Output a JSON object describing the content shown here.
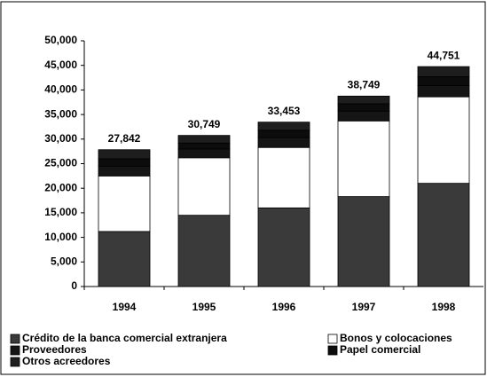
{
  "chart_data": {
    "type": "stacked_bar",
    "categories": [
      "1994",
      "1995",
      "1996",
      "1997",
      "1998"
    ],
    "series": [
      {
        "name": "Crédito de la banca comercial extranjera",
        "color": "#3a3a3a",
        "values": [
          11200,
          14500,
          16000,
          18300,
          21000
        ]
      },
      {
        "name": "Bonos y colocaciones",
        "color": "#ffffff",
        "values": [
          11300,
          11700,
          12300,
          15400,
          17600
        ]
      },
      {
        "name": "Proveedores",
        "color": "#151515",
        "values": [
          2000,
          1800,
          2000,
          2000,
          2300
        ]
      },
      {
        "name": "Papel comercial",
        "color": "#0c0c0c",
        "values": [
          1500,
          1200,
          1500,
          1500,
          1800
        ]
      },
      {
        "name": "Otros acreedores",
        "color": "#1e1e1e",
        "values": [
          1842,
          1549,
          1653,
          1549,
          2051
        ]
      }
    ],
    "totals": [
      27842,
      30749,
      33453,
      38749,
      44751
    ],
    "value_labels": [
      "27,842",
      "30,749",
      "33,453",
      "38,749",
      "44,751"
    ],
    "ylim": [
      0,
      50000
    ],
    "yticks": [
      0,
      {
        "value": 5000,
        "label": "5,000"
      },
      {
        "value": 10000,
        "label": "10,000"
      },
      {
        "value": 15000,
        "label": "15,000"
      },
      {
        "value": 20000,
        "label": "20,000"
      },
      {
        "value": 25000,
        "label": "25,000"
      },
      {
        "value": 30000,
        "label": "30,000"
      },
      {
        "value": 35000,
        "label": "35,000"
      },
      {
        "value": 40000,
        "label": "40,000"
      },
      {
        "value": 45000,
        "label": "45,000"
      },
      {
        "value": 50000,
        "label": "50,000"
      }
    ],
    "grid": false
  }
}
